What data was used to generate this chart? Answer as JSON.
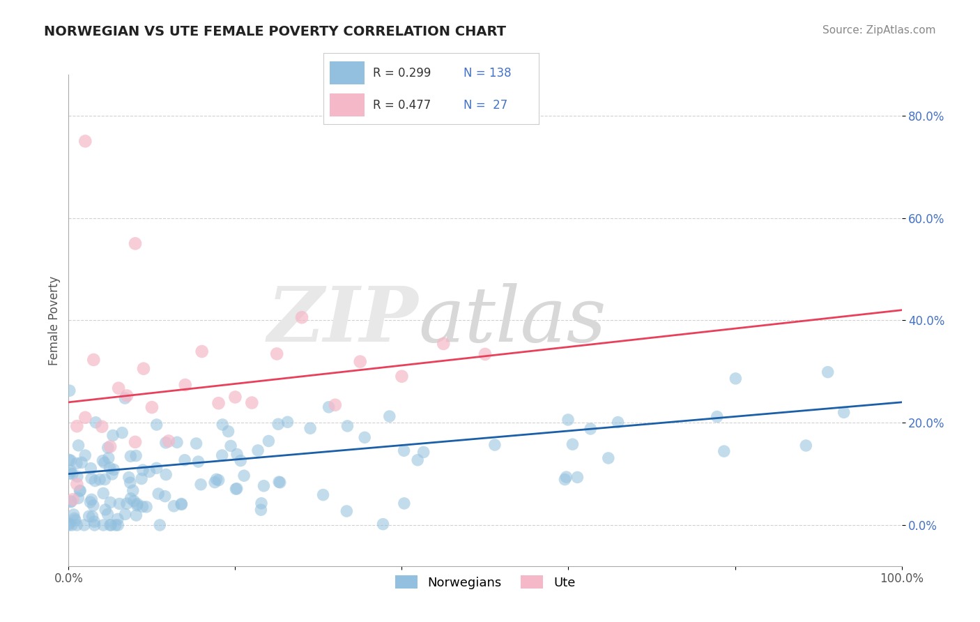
{
  "title": "NORWEGIAN VS UTE FEMALE POVERTY CORRELATION CHART",
  "source": "Source: ZipAtlas.com",
  "ylabel": "Female Poverty",
  "xlim": [
    0,
    100
  ],
  "ylim": [
    -8,
    88
  ],
  "ytick_values": [
    0,
    20,
    40,
    60,
    80
  ],
  "ytick_labels": [
    "0.0%",
    "20.0%",
    "40.0%",
    "60.0%",
    "80.0%"
  ],
  "xtick_values": [
    0,
    20,
    40,
    60,
    80,
    100
  ],
  "xtick_labels": [
    "0.0%",
    "",
    "",
    "",
    "",
    "100.0%"
  ],
  "norwegian_color": "#92c0de",
  "ute_color": "#f5b8c8",
  "norwegian_line_color": "#1a5fa8",
  "ute_line_color": "#e8405a",
  "R_norwegian": 0.299,
  "N_norwegian": 138,
  "R_ute": 0.477,
  "N_ute": 27,
  "background_color": "#ffffff",
  "grid_color": "#cccccc",
  "tick_color": "#4472c4",
  "nor_line_y0": 10.0,
  "nor_line_y1": 24.0,
  "ute_line_y0": 24.0,
  "ute_line_y1": 42.0
}
